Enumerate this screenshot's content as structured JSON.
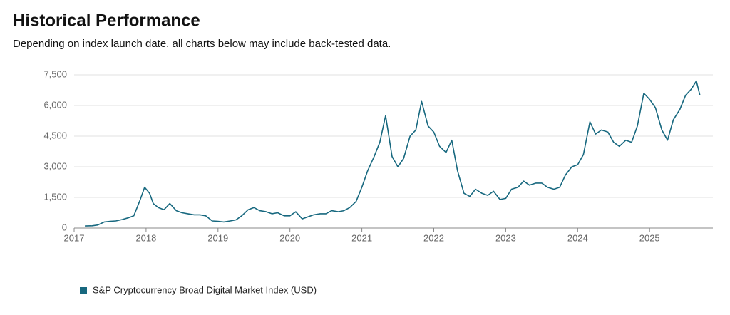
{
  "title": "Historical Performance",
  "subtitle": "Depending on index launch date, all charts below may include back-tested data.",
  "chart_data": {
    "type": "line",
    "x": [
      2017.15,
      2017.25,
      2017.33,
      2017.42,
      2017.5,
      2017.58,
      2017.67,
      2017.75,
      2017.83,
      2017.92,
      2017.98,
      2018.05,
      2018.1,
      2018.17,
      2018.25,
      2018.33,
      2018.42,
      2018.5,
      2018.58,
      2018.67,
      2018.75,
      2018.83,
      2018.92,
      2019.0,
      2019.08,
      2019.17,
      2019.25,
      2019.33,
      2019.42,
      2019.5,
      2019.58,
      2019.67,
      2019.75,
      2019.83,
      2019.92,
      2020.0,
      2020.08,
      2020.17,
      2020.25,
      2020.33,
      2020.42,
      2020.5,
      2020.58,
      2020.67,
      2020.75,
      2020.83,
      2020.92,
      2021.0,
      2021.08,
      2021.17,
      2021.25,
      2021.33,
      2021.42,
      2021.5,
      2021.58,
      2021.67,
      2021.75,
      2021.83,
      2021.92,
      2022.0,
      2022.08,
      2022.17,
      2022.25,
      2022.33,
      2022.42,
      2022.5,
      2022.58,
      2022.67,
      2022.75,
      2022.83,
      2022.92,
      2023.0,
      2023.08,
      2023.17,
      2023.25,
      2023.33,
      2023.42,
      2023.5,
      2023.58,
      2023.67,
      2023.75,
      2023.83,
      2023.92,
      2024.0,
      2024.08,
      2024.17,
      2024.25,
      2024.33,
      2024.42,
      2024.5,
      2024.58,
      2024.67,
      2024.75,
      2024.83,
      2024.92,
      2025.0,
      2025.08,
      2025.17,
      2025.25,
      2025.33,
      2025.42,
      2025.5,
      2025.58,
      2025.65,
      2025.7
    ],
    "series": [
      {
        "name": "S&P Cryptocurrency Broad Digital Market Index (USD)",
        "color": "#17687f",
        "values": [
          100,
          110,
          150,
          300,
          330,
          350,
          420,
          500,
          600,
          1400,
          2000,
          1700,
          1200,
          1000,
          900,
          1200,
          850,
          750,
          700,
          650,
          650,
          600,
          350,
          330,
          300,
          350,
          400,
          600,
          900,
          1000,
          850,
          800,
          700,
          750,
          600,
          600,
          800,
          450,
          550,
          650,
          700,
          700,
          850,
          800,
          850,
          1000,
          1300,
          2000,
          2800,
          3500,
          4200,
          5500,
          3500,
          3000,
          3400,
          4500,
          4800,
          6200,
          5000,
          4700,
          4000,
          3700,
          4300,
          2800,
          1700,
          1550,
          1900,
          1700,
          1600,
          1800,
          1400,
          1450,
          1900,
          2000,
          2300,
          2100,
          2200,
          2200,
          2000,
          1900,
          2000,
          2600,
          3000,
          3100,
          3600,
          5200,
          4600,
          4800,
          4700,
          4200,
          4000,
          4300,
          4200,
          5000,
          6600,
          6300,
          5900,
          4800,
          4300,
          5300,
          5800,
          6500,
          6800,
          7200,
          6500
        ]
      }
    ],
    "xlim": [
      2017,
      2025.88
    ],
    "xticks": [
      2017,
      2018,
      2019,
      2020,
      2021,
      2022,
      2023,
      2024,
      2025
    ],
    "ylim": [
      0,
      7500
    ],
    "yticks": [
      0,
      {
        "value": 1500,
        "label": "1,500"
      },
      {
        "value": 3000,
        "label": "3,000"
      },
      {
        "value": 4500,
        "label": "4,500"
      },
      {
        "value": 6000,
        "label": "6,000"
      },
      {
        "value": 7500,
        "label": "7,500"
      }
    ],
    "grid": true
  }
}
